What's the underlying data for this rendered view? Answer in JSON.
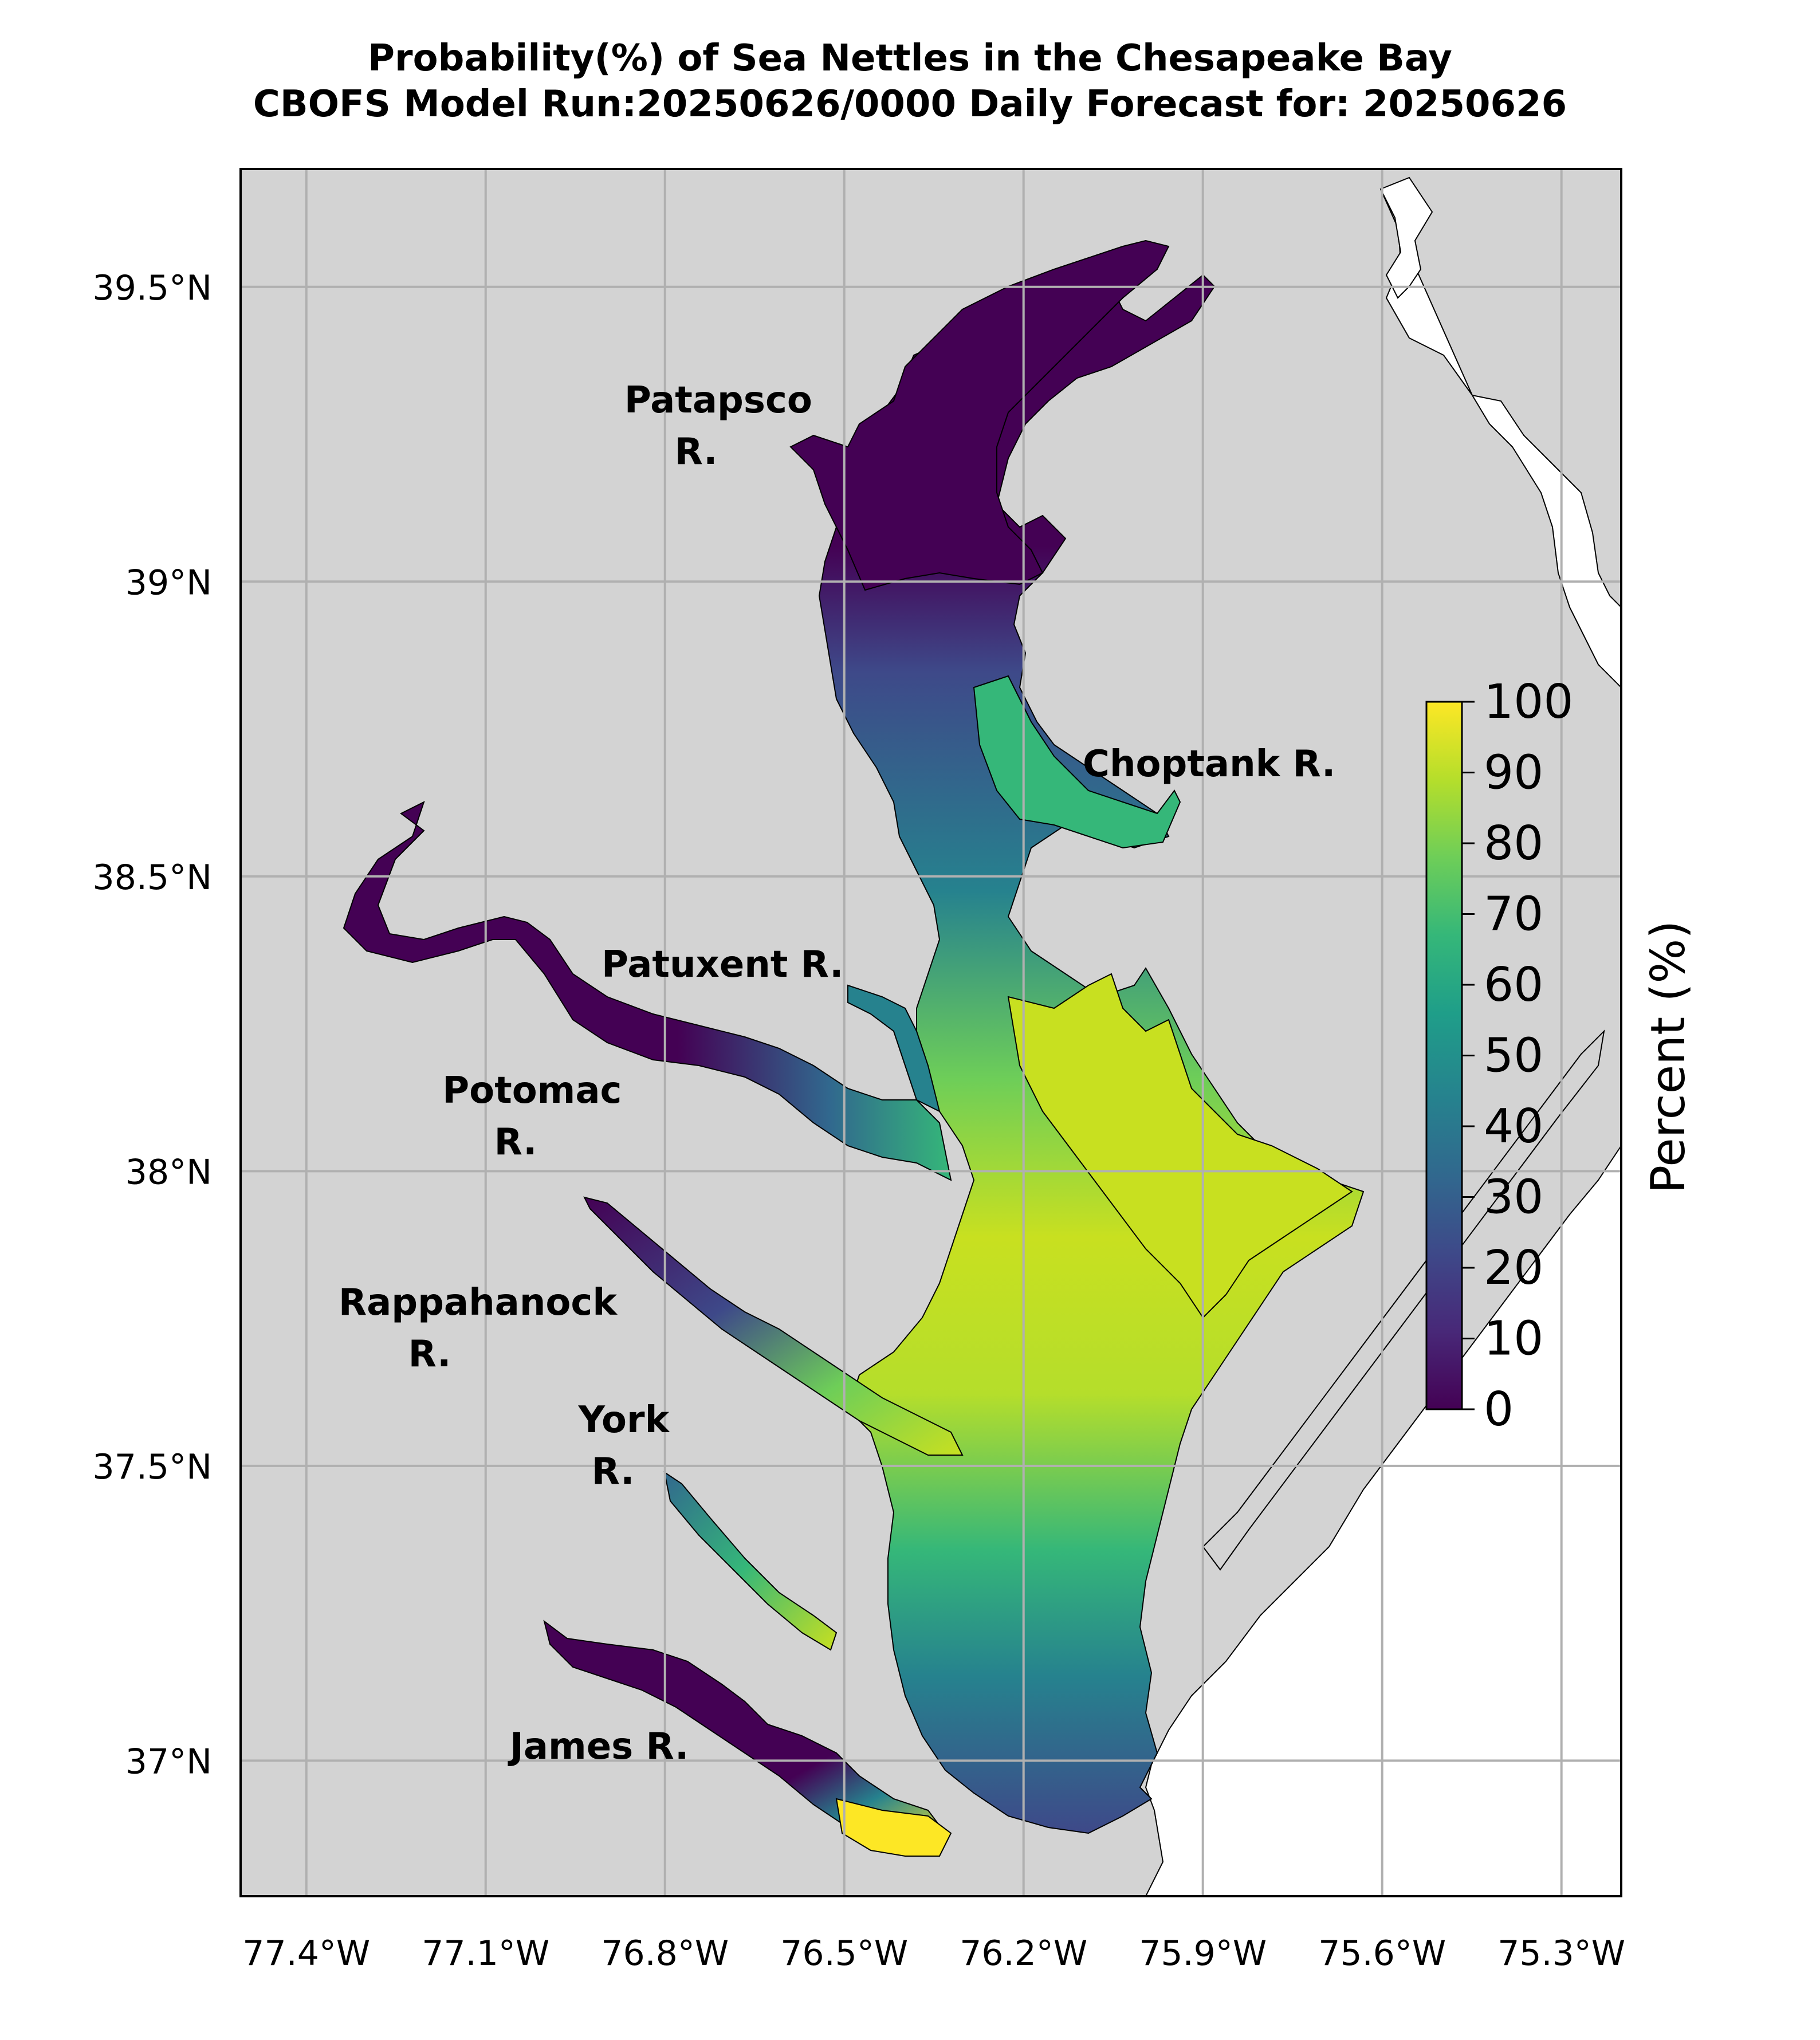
{
  "title": {
    "line1": "Probability(%) of Sea Nettles in the Chesapeake Bay",
    "line2": "CBOFS Model Run:20250626/0000 Daily Forecast for: 20250626"
  },
  "map": {
    "lon_range": [
      -77.51,
      -75.2
    ],
    "lat_range": [
      36.77,
      39.7
    ],
    "lon_ticks": [
      {
        "value": -77.4,
        "label": "77.4°W"
      },
      {
        "value": -77.1,
        "label": "77.1°W"
      },
      {
        "value": -76.8,
        "label": "76.8°W"
      },
      {
        "value": -76.5,
        "label": "76.5°W"
      },
      {
        "value": -76.2,
        "label": "76.2°W"
      },
      {
        "value": -75.9,
        "label": "75.9°W"
      },
      {
        "value": -75.6,
        "label": "75.6°W"
      },
      {
        "value": -75.3,
        "label": "75.3°W"
      }
    ],
    "lat_ticks": [
      {
        "value": 39.5,
        "label": "39.5°N"
      },
      {
        "value": 39.0,
        "label": "39°N"
      },
      {
        "value": 38.5,
        "label": "38.5°N"
      },
      {
        "value": 38.0,
        "label": "38°N"
      },
      {
        "value": 37.5,
        "label": "37.5°N"
      },
      {
        "value": 37.0,
        "label": "37°N"
      }
    ],
    "grid": true,
    "land_color": "#d3d3d3",
    "ocean_color": "#ffffff",
    "grid_color": "#b0b0b0"
  },
  "rivers": [
    {
      "lines": [
        "Patapsco",
        "R."
      ]
    },
    {
      "lines": [
        "Choptank R."
      ]
    },
    {
      "lines": [
        "Patuxent R."
      ]
    },
    {
      "lines": [
        "Potomac",
        "R."
      ]
    },
    {
      "lines": [
        "Rappahanock",
        "R."
      ]
    },
    {
      "lines": [
        "York",
        "R."
      ]
    },
    {
      "lines": [
        "James R."
      ]
    }
  ],
  "colorbar": {
    "label": "Percent (%)",
    "min": 0,
    "max": 100,
    "ticks": [
      0,
      10,
      20,
      30,
      40,
      50,
      60,
      70,
      80,
      90,
      100
    ],
    "colormap": "viridis",
    "colors": [
      "#440154",
      "#482878",
      "#3e4989",
      "#31688e",
      "#26828e",
      "#1f9e89",
      "#35b779",
      "#6ece58",
      "#b5de2b",
      "#fde725"
    ]
  }
}
